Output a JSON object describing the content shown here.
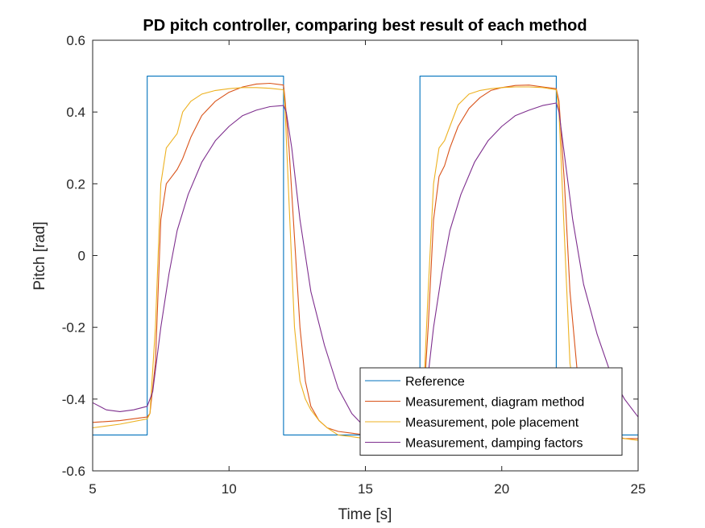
{
  "chart_data": {
    "type": "line",
    "title": "PD pitch controller, comparing best result of each method",
    "xlabel": "Time [s]",
    "ylabel": "Pitch [rad]",
    "xlim": [
      5,
      25
    ],
    "ylim": [
      -0.6,
      0.6
    ],
    "xticks": [
      5,
      10,
      15,
      20,
      25
    ],
    "yticks": [
      -0.6,
      -0.4,
      -0.2,
      0,
      0.2,
      0.4,
      0.6
    ],
    "xtick_labels": [
      "5",
      "10",
      "15",
      "20",
      "25"
    ],
    "ytick_labels": [
      "-0.6",
      "-0.4",
      "-0.2",
      "0",
      "0.2",
      "0.4",
      "0.6"
    ],
    "grid": false,
    "legend_position": "bottom-right",
    "series": [
      {
        "name": "Reference",
        "color": "#0072BD",
        "step": true,
        "x": [
          5,
          7,
          7,
          12,
          12,
          17,
          17,
          22,
          22,
          25
        ],
        "y": [
          -0.5,
          -0.5,
          0.5,
          0.5,
          -0.5,
          -0.5,
          0.5,
          0.5,
          -0.5,
          -0.5
        ]
      },
      {
        "name": "Measurement, diagram method",
        "color": "#D95319",
        "x": [
          5,
          6,
          7,
          7.1,
          7.3,
          7.5,
          7.7,
          7.9,
          8.1,
          8.3,
          8.6,
          9,
          9.5,
          10,
          10.5,
          11,
          11.5,
          12,
          12.05,
          12.2,
          12.4,
          12.6,
          12.8,
          13.0,
          13.3,
          13.6,
          14.0,
          14.5,
          15,
          15.5,
          16,
          16.5,
          17,
          17.1,
          17.3,
          17.5,
          17.7,
          17.9,
          18.1,
          18.4,
          18.8,
          19.2,
          19.6,
          20,
          20.5,
          21,
          21.5,
          22,
          22.1,
          22.3,
          22.5,
          22.8,
          23.1,
          23.5,
          24,
          24.5,
          25
        ],
        "y": [
          -0.465,
          -0.46,
          -0.45,
          -0.44,
          -0.3,
          0.1,
          0.2,
          0.22,
          0.24,
          0.27,
          0.33,
          0.39,
          0.43,
          0.455,
          0.47,
          0.478,
          0.48,
          0.475,
          0.44,
          0.3,
          0.05,
          -0.2,
          -0.35,
          -0.42,
          -0.46,
          -0.48,
          -0.49,
          -0.495,
          -0.5,
          -0.505,
          -0.505,
          -0.5,
          -0.48,
          -0.45,
          -0.2,
          0.1,
          0.22,
          0.25,
          0.3,
          0.36,
          0.41,
          0.44,
          0.46,
          0.468,
          0.474,
          0.475,
          0.47,
          0.465,
          0.43,
          0.2,
          -0.1,
          -0.35,
          -0.45,
          -0.49,
          -0.5,
          -0.51,
          -0.51
        ]
      },
      {
        "name": "Measurement, pole placement",
        "color": "#EDB120",
        "x": [
          5,
          6,
          7,
          7.1,
          7.3,
          7.5,
          7.7,
          7.9,
          8.1,
          8.3,
          8.6,
          9,
          9.5,
          10,
          10.5,
          11,
          11.5,
          12,
          12.05,
          12.2,
          12.4,
          12.6,
          12.8,
          13.0,
          13.3,
          13.6,
          14.0,
          14.5,
          15,
          15.5,
          16,
          16.5,
          17,
          17.1,
          17.3,
          17.5,
          17.7,
          17.9,
          18.1,
          18.4,
          18.8,
          19.2,
          19.6,
          20,
          20.5,
          21,
          21.5,
          22,
          22.1,
          22.3,
          22.5,
          22.8,
          23.1,
          23.5,
          24,
          24.5,
          25
        ],
        "y": [
          -0.48,
          -0.47,
          -0.455,
          -0.44,
          -0.2,
          0.2,
          0.3,
          0.32,
          0.34,
          0.4,
          0.43,
          0.45,
          0.46,
          0.465,
          0.468,
          0.468,
          0.466,
          0.462,
          0.42,
          0.15,
          -0.2,
          -0.35,
          -0.4,
          -0.43,
          -0.46,
          -0.48,
          -0.5,
          -0.505,
          -0.51,
          -0.51,
          -0.505,
          -0.5,
          -0.48,
          -0.44,
          -0.1,
          0.2,
          0.3,
          0.32,
          0.36,
          0.42,
          0.45,
          0.46,
          0.465,
          0.468,
          0.47,
          0.47,
          0.468,
          0.462,
          0.4,
          0.05,
          -0.3,
          -0.45,
          -0.49,
          -0.5,
          -0.505,
          -0.51,
          -0.515
        ]
      },
      {
        "name": "Measurement, damping factors",
        "color": "#7E2F8E",
        "x": [
          5,
          5.5,
          6,
          6.5,
          7,
          7.2,
          7.5,
          7.8,
          8.1,
          8.5,
          9,
          9.5,
          10,
          10.5,
          11,
          11.5,
          12,
          12.1,
          12.3,
          12.6,
          13,
          13.5,
          14,
          14.5,
          15,
          15.5,
          16,
          16.5,
          17,
          17.2,
          17.5,
          17.8,
          18.1,
          18.5,
          19,
          19.5,
          20,
          20.5,
          21,
          21.5,
          22,
          22.1,
          22.3,
          22.6,
          23,
          23.5,
          24,
          24.5,
          25
        ],
        "y": [
          -0.41,
          -0.43,
          -0.435,
          -0.43,
          -0.42,
          -0.38,
          -0.2,
          -0.05,
          0.07,
          0.17,
          0.26,
          0.32,
          0.36,
          0.39,
          0.405,
          0.415,
          0.418,
          0.4,
          0.3,
          0.1,
          -0.1,
          -0.25,
          -0.37,
          -0.44,
          -0.48,
          -0.5,
          -0.505,
          -0.5,
          -0.48,
          -0.4,
          -0.2,
          -0.05,
          0.07,
          0.17,
          0.26,
          0.32,
          0.36,
          0.39,
          0.405,
          0.418,
          0.425,
          0.4,
          0.28,
          0.1,
          -0.08,
          -0.22,
          -0.33,
          -0.4,
          -0.45
        ]
      }
    ]
  }
}
